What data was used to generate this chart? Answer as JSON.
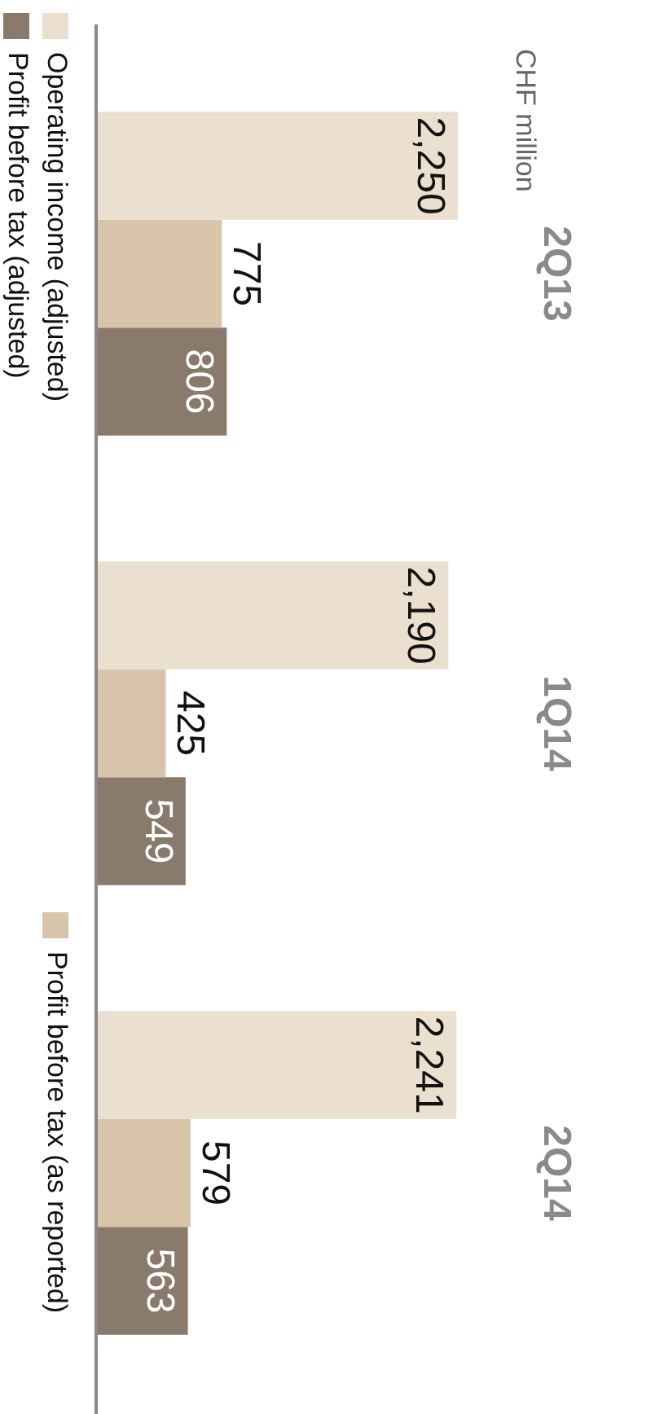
{
  "chart_data": {
    "type": "bar",
    "orientation": "horizontal",
    "title": "CHF million",
    "categories": [
      "2Q13",
      "1Q14",
      "2Q14"
    ],
    "series": [
      {
        "name": "Operating income (adjusted)",
        "color": "#ebdfcf",
        "values": [
          2250,
          2190,
          2241
        ],
        "value_labels": [
          "2,250",
          "2,190",
          "2,241"
        ]
      },
      {
        "name": "Profit before tax (as reported)",
        "color": "#d8c4a8",
        "values": [
          775,
          425,
          579
        ]
      },
      {
        "name": "Profit before tax (adjusted)",
        "color": "#8a7a6b",
        "values": [
          806,
          549,
          563
        ]
      }
    ],
    "data_labels": true,
    "legend": "left"
  }
}
